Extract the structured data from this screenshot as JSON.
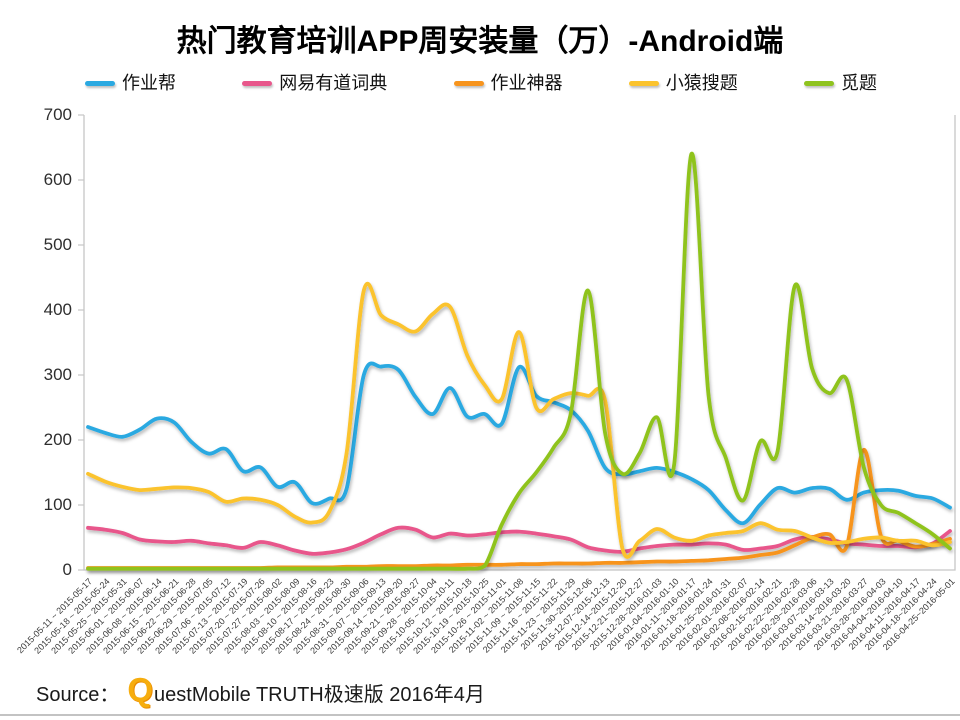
{
  "source": {
    "label": "Source：",
    "brand_initial": "Q",
    "rest": "uestMobile TRUTH极速版 2016年4月"
  },
  "chart_data": {
    "type": "line",
    "title": "热门教育培训APP周安装量（万）-Android端",
    "xlabel": "",
    "ylabel": "",
    "ylim": [
      0,
      700
    ],
    "ytick_interval": 100,
    "grid": false,
    "smooth": true,
    "legend_position": "top",
    "axis_color": "#c6c6c6",
    "categories": [
      "2015-05-11 ~ 2015-05-17",
      "2015-05-18 ~ 2015-05-24",
      "2015-05-25 ~ 2015-05-31",
      "2015-06-01 ~ 2015-06-07",
      "2015-06-08 ~ 2015-06-14",
      "2015-06-15 ~ 2015-06-21",
      "2015-06-22 ~ 2015-06-28",
      "2015-06-29 ~ 2015-07-05",
      "2015-07-06 ~ 2015-07-12",
      "2015-07-13 ~ 2015-07-19",
      "2015-07-20 ~ 2015-07-26",
      "2015-07-27 ~ 2015-08-02",
      "2015-08-03 ~ 2015-08-09",
      "2015-08-10 ~ 2015-08-16",
      "2015-08-17 ~ 2015-08-23",
      "2015-08-24 ~ 2015-08-30",
      "2015-08-31 ~ 2015-09-06",
      "2015-09-07 ~ 2015-09-13",
      "2015-09-14 ~ 2015-09-20",
      "2015-09-21 ~ 2015-09-27",
      "2015-09-28 ~ 2015-10-04",
      "2015-10-05 ~ 2015-10-11",
      "2015-10-12 ~ 2015-10-18",
      "2015-10-19 ~ 2015-10-25",
      "2015-10-26 ~ 2015-11-01",
      "2015-11-02 ~ 2015-11-08",
      "2015-11-09 ~ 2015-11-15",
      "2015-11-16 ~ 2015-11-22",
      "2015-11-23 ~ 2015-11-29",
      "2015-11-30~2015-12-06",
      "2015-12-07~2015-12-13",
      "2015-12-14~2015-12-20",
      "2015-12-21~2015-12-27",
      "2015-12-28~2016-01-03",
      "2016-01-04~2016-01-10",
      "2016-01-11~2016-01-17",
      "2016-01-18~2016-01-24",
      "2016-01-25~2016-01-31",
      "2016-02-01~2016-02-07",
      "2016-02-08~2016-02-14",
      "2016-02-15~2016-02-21",
      "2016-02-22~2016-02-28",
      "2016-02-29~2016-03-06",
      "2016-03-07~2016-03-13",
      "2016-03-14~2016-03-20",
      "2016-03-21~2016-03-27",
      "2016-03-28~2016-04-03",
      "2016-04-04~2016-04-10",
      "2016-04-11~2016-04-17",
      "2016-04-18~2016-04-24",
      "2016-04-25~2016-05-01"
    ],
    "series": [
      {
        "name": "作业帮",
        "color": "#2BA9E1",
        "values": [
          220,
          211,
          205,
          216,
          233,
          227,
          197,
          179,
          186,
          152,
          158,
          128,
          135,
          103,
          110,
          125,
          300,
          313,
          308,
          266,
          240,
          280,
          236,
          240,
          225,
          312,
          268,
          258,
          246,
          214,
          157,
          147,
          152,
          157,
          151,
          140,
          123,
          92,
          72,
          101,
          126,
          119,
          126,
          125,
          108,
          119,
          123,
          122,
          114,
          110,
          96
        ]
      },
      {
        "name": "网易有道词典",
        "color": "#E8578B",
        "values": [
          65,
          62,
          57,
          47,
          44,
          43,
          45,
          41,
          38,
          34,
          43,
          38,
          30,
          25,
          27,
          32,
          42,
          55,
          65,
          62,
          50,
          56,
          53,
          55,
          58,
          59,
          56,
          52,
          47,
          35,
          30,
          28,
          33,
          37,
          39,
          39,
          41,
          39,
          31,
          33,
          37,
          47,
          51,
          47,
          41,
          39,
          37,
          37,
          35,
          41,
          60
        ]
      },
      {
        "name": "作业神器",
        "color": "#F7941D",
        "values": [
          3,
          3,
          3,
          3,
          3,
          3,
          3,
          3,
          3,
          3,
          3,
          4,
          4,
          4,
          4,
          5,
          5,
          6,
          6,
          6,
          7,
          7,
          8,
          8,
          8,
          9,
          9,
          10,
          10,
          10,
          11,
          11,
          12,
          13,
          13,
          14,
          15,
          17,
          19,
          23,
          27,
          38,
          50,
          55,
          36,
          185,
          52,
          45,
          36,
          40,
          48
        ]
      },
      {
        "name": "小猿搜题",
        "color": "#FBC32D",
        "values": [
          148,
          136,
          128,
          123,
          125,
          127,
          126,
          120,
          105,
          110,
          108,
          100,
          82,
          73,
          90,
          180,
          430,
          392,
          378,
          367,
          394,
          405,
          330,
          285,
          263,
          366,
          250,
          263,
          272,
          268,
          260,
          33,
          45,
          63,
          50,
          45,
          53,
          57,
          60,
          72,
          62,
          60,
          50,
          42,
          43,
          48,
          50,
          45,
          45,
          38,
          43
        ]
      },
      {
        "name": "觅题",
        "color": "#8FC31F",
        "values": [
          2,
          2,
          2,
          2,
          2,
          2,
          2,
          2,
          2,
          2,
          2,
          2,
          2,
          2,
          2,
          2,
          2,
          2,
          2,
          2,
          2,
          2,
          2,
          6,
          70,
          118,
          150,
          188,
          240,
          430,
          210,
          148,
          180,
          235,
          163,
          640,
          268,
          172,
          107,
          198,
          183,
          437,
          310,
          272,
          293,
          158,
          100,
          88,
          72,
          55,
          33
        ]
      }
    ]
  }
}
